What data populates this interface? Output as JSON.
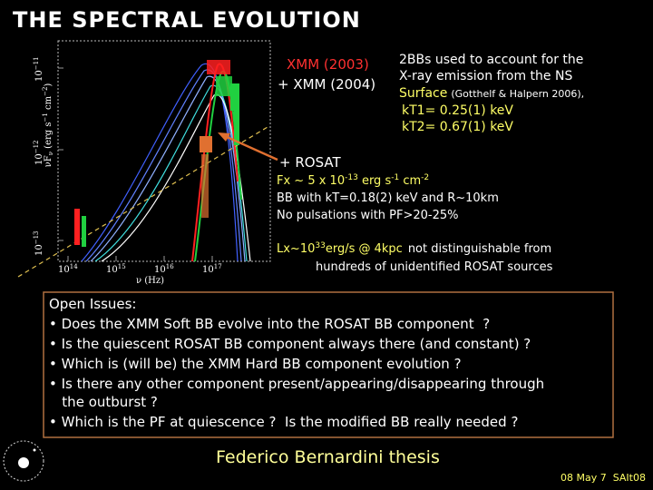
{
  "title": "THE SPECTRAL EVOLUTION",
  "plot": {
    "y_label": [
      "νF",
      "ν",
      " (erg s",
      "−1",
      " cm",
      "−2",
      ")"
    ],
    "x_label": "ν (Hz)",
    "y_ticks": [
      {
        "base": "10",
        "exp": "−11"
      },
      {
        "base": "10",
        "exp": "−12"
      },
      {
        "base": "10",
        "exp": "−13"
      }
    ],
    "x_ticks": [
      {
        "base": "10",
        "exp": "14"
      },
      {
        "base": "10",
        "exp": "15"
      },
      {
        "base": "10",
        "exp": "16"
      },
      {
        "base": "10",
        "exp": "17"
      }
    ]
  },
  "xmm": {
    "xmm_2003": "XMM (2003)",
    "xmm_2004": "+ XMM (2004)",
    "desc_line1": "2BBs used to account for the",
    "desc_line2": "X-ray emission from the NS",
    "surface": "Surface",
    "reference": "(Gotthelf & Halpern 2006),",
    "kt1": "kT1= 0.25(1) keV",
    "kt2": "kT2= 0.67(1) keV"
  },
  "rosat": {
    "label": "+ ROSAT",
    "flux": [
      "Fx ~ 5 x 10",
      "-13",
      " erg s",
      "-1",
      " cm",
      "-2"
    ],
    "bb": "BB with kT=0.18(2) keV and R~10km",
    "pulsations": "No pulsations with PF>20-25%",
    "lx": [
      "Lx~10",
      "33",
      "erg/s @ 4kpc"
    ],
    "not_distinguishable": "not distinguishable from",
    "hundreds": "hundreds of unidentified ROSAT sources"
  },
  "open_issues": {
    "heading": "Open Issues:",
    "items": [
      "• Does the XMM Soft BB evolve into the ROSAT BB component  ?",
      "• Is the quiescent ROSAT BB component always there (and constant) ?",
      "• Which is (will be) the XMM Hard BB component evolution ?",
      "• Is there any other component present/appearing/disappearing through",
      "   the outburst ?",
      "• Which is the PF at quiescence ?  Is the modified BB really needed ?"
    ]
  },
  "footer": {
    "author": "Federico Bernardini thesis",
    "date": "08 May 7  SAIt08"
  }
}
